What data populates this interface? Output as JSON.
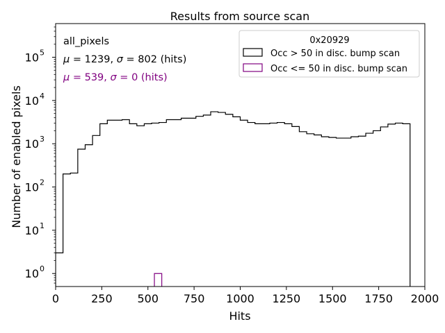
{
  "chart_data": {
    "type": "histogram",
    "title": "Results from source scan",
    "xlabel": "Hits",
    "ylabel": "Number of enabled pixels",
    "xlim": [
      0,
      2000
    ],
    "ylim": [
      0.5,
      600000
    ],
    "yscale": "log",
    "grid": false,
    "x_ticks": [
      0,
      250,
      500,
      750,
      1000,
      1250,
      1500,
      1750,
      2000
    ],
    "x_tick_labels": [
      "0",
      "250",
      "500",
      "750",
      "1000",
      "1250",
      "1500",
      "1750",
      "2000"
    ],
    "y_ticks": [
      1,
      10,
      100,
      1000,
      10000,
      100000
    ],
    "y_tick_labels": [
      {
        "base": "10",
        "exp": "0"
      },
      {
        "base": "10",
        "exp": "1"
      },
      {
        "base": "10",
        "exp": "2"
      },
      {
        "base": "10",
        "exp": "3"
      },
      {
        "base": "10",
        "exp": "4"
      },
      {
        "base": "10",
        "exp": "5"
      }
    ],
    "bin_width": 40,
    "series": [
      {
        "name": "Occ > 50 in disc. bump scan",
        "color": "#000000",
        "bin_edges_start": 0,
        "values": [
          3,
          200,
          210,
          750,
          950,
          1550,
          2900,
          3500,
          3500,
          3600,
          2900,
          2600,
          2900,
          3000,
          3100,
          3600,
          3600,
          3900,
          3900,
          4300,
          4600,
          5500,
          5300,
          4800,
          4200,
          3500,
          3100,
          2900,
          2900,
          3000,
          3100,
          2900,
          2500,
          1900,
          1700,
          1600,
          1450,
          1400,
          1350,
          1350,
          1450,
          1500,
          1750,
          2000,
          2450,
          2850,
          3000,
          2900
        ]
      },
      {
        "name": "Occ <= 50 in disc. bump scan",
        "color": "#800080",
        "bins": [
          {
            "x0": 535,
            "x1": 575,
            "value": 1
          }
        ]
      }
    ],
    "legend": {
      "title": "0x20929",
      "placement": "top-right"
    },
    "annotations": {
      "name": "all_pixels",
      "stats_all": {
        "mu": "1239",
        "sigma": "802",
        "unit": "(hits)",
        "color": "#000000"
      },
      "stats_low": {
        "mu": "539",
        "sigma": "0",
        "unit": "(hits)",
        "color": "#800080"
      }
    }
  }
}
